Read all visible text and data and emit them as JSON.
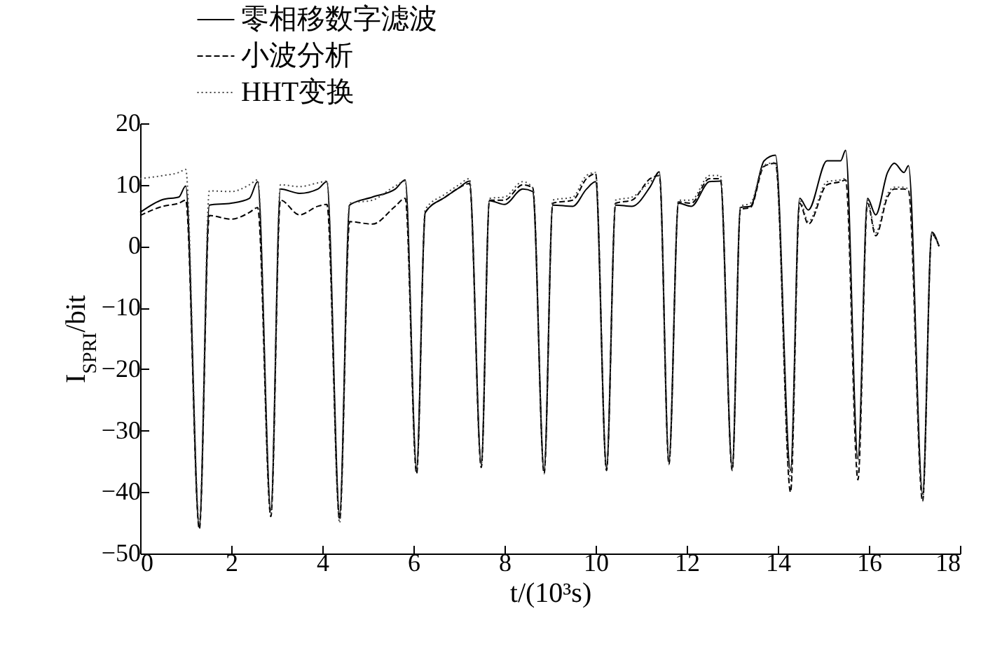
{
  "chart_data": {
    "type": "line",
    "xlabel": "t/(10³s)",
    "ylabel": "I$_{SPRI}$/bit",
    "xlim": [
      0,
      18
    ],
    "xticks": [
      0,
      2,
      4,
      6,
      8,
      10,
      12,
      14,
      16,
      18
    ],
    "ylim": [
      -50,
      20
    ],
    "yticks": [
      -50,
      -40,
      -30,
      -20,
      -10,
      0,
      10,
      20
    ],
    "grid": false,
    "legend": "top",
    "marker": "none",
    "x": [
      0,
      0.5,
      0.85,
      1.0,
      1.3,
      1.52,
      2.0,
      2.4,
      2.58,
      2.87,
      3.08,
      3.5,
      3.9,
      4.1,
      4.38,
      4.6,
      5.1,
      5.6,
      5.82,
      6.07,
      6.26,
      6.7,
      7.0,
      7.23,
      7.49,
      7.67,
      8.0,
      8.4,
      8.62,
      8.87,
      9.06,
      9.5,
      9.8,
      10.0,
      10.24,
      10.44,
      10.8,
      11.2,
      11.4,
      11.61,
      11.82,
      12.1,
      12.5,
      12.74,
      13.0,
      13.18,
      13.4,
      13.7,
      13.95,
      14.28,
      14.48,
      14.67,
      15.08,
      15.38,
      15.49,
      15.76,
      15.97,
      16.15,
      16.41,
      16.56,
      16.77,
      16.87,
      17.18,
      17.38,
      17.54
    ],
    "series": [
      {
        "name": "零相移数字滤波",
        "color": "#000000",
        "line_style": "solid",
        "values": [
          5.5,
          7.6,
          8,
          9.8,
          -45.7,
          6.7,
          7,
          7.8,
          10.5,
          -43,
          9.3,
          8.6,
          9.3,
          10.5,
          -43.6,
          6.7,
          8,
          9.3,
          10.8,
          -36.1,
          5.5,
          8,
          9.5,
          10.6,
          -35.4,
          7.4,
          6.8,
          9.3,
          8.9,
          -36.5,
          6.7,
          6.5,
          9.3,
          10.5,
          -36.1,
          6.7,
          6.5,
          9.7,
          12.1,
          -35,
          7,
          6.5,
          10.5,
          10.6,
          -36.1,
          6.3,
          6.5,
          13.9,
          14.8,
          -36.5,
          7.8,
          5.9,
          13.9,
          13.9,
          15.6,
          -34.6,
          7.8,
          5.1,
          12,
          13.5,
          12,
          13.1,
          -40.3,
          2.3,
          0
        ]
      },
      {
        "name": "小波分析",
        "color": "#000000",
        "line_style": "dashed",
        "values": [
          5,
          6.5,
          7,
          7.5,
          -46,
          5,
          4.4,
          5.5,
          6.3,
          -44,
          7.5,
          5.1,
          6.5,
          6.8,
          -44.5,
          4,
          3.6,
          6.5,
          7.8,
          -37,
          5.5,
          8,
          9.5,
          10.2,
          -36,
          7.5,
          7.5,
          10,
          9.5,
          -37,
          7,
          7.5,
          11,
          11.8,
          -36.5,
          7,
          7.5,
          11,
          11.5,
          -35.5,
          7.2,
          7,
          11,
          11,
          -36.5,
          6,
          6.3,
          13,
          13.5,
          -40,
          7,
          3.6,
          10,
          10.5,
          10.8,
          -38,
          7,
          1.7,
          8,
          9.3,
          9.3,
          9,
          -41.5,
          2,
          0
        ]
      },
      {
        "name": "HHT变换",
        "color": "#444444",
        "line_style": "dotted",
        "values": [
          11,
          11.5,
          12,
          12.5,
          -45,
          9,
          8.9,
          10,
          10.8,
          -43.5,
          10,
          9.7,
          10.3,
          10.6,
          -45,
          7,
          7.5,
          9.8,
          10.6,
          -36.5,
          6,
          8.5,
          10,
          11,
          -35.5,
          7.8,
          8,
          10.5,
          9.5,
          -36.5,
          7.5,
          8,
          11.5,
          12,
          -36,
          7.5,
          8,
          10.5,
          11.5,
          -35,
          7.5,
          7.5,
          11.5,
          11.5,
          -36,
          6.5,
          7,
          13.2,
          13.6,
          -38,
          7.5,
          4,
          10.5,
          10.8,
          11,
          -37,
          7.5,
          2.2,
          8.5,
          9.6,
          9.6,
          9.2,
          -41,
          2,
          0
        ]
      }
    ]
  }
}
